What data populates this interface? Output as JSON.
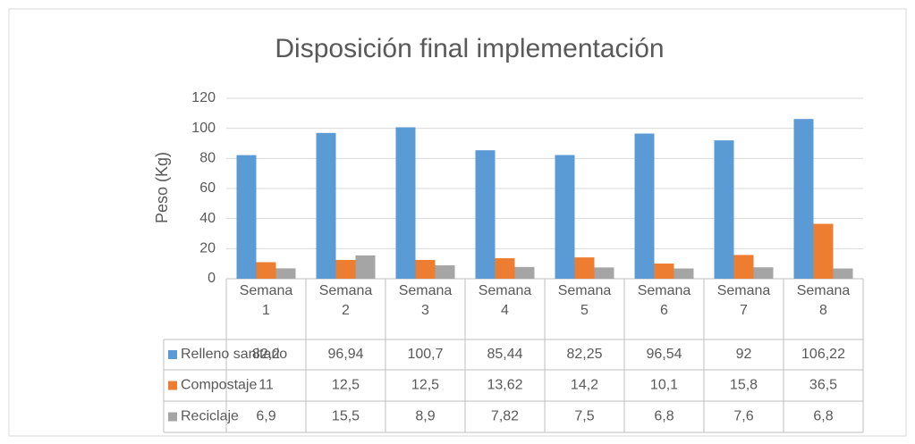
{
  "chart_data": {
    "type": "bar",
    "title": "Disposición final implementación",
    "y_label": "Peso (Kg)",
    "categories": [
      "Semana 1",
      "Semana 2",
      "Semana 3",
      "Semana 4",
      "Semana 5",
      "Semana 6",
      "Semana 7",
      "Semana 8"
    ],
    "series": [
      {
        "name": "Relleno sanitario",
        "color": "#5b9bd5",
        "values": [
          82.2,
          96.94,
          100.7,
          85.44,
          82.25,
          96.54,
          92,
          106.22
        ],
        "value_labels": [
          "82,2",
          "96,94",
          "100,7",
          "85,44",
          "82,25",
          "96,54",
          "92",
          "106,22"
        ]
      },
      {
        "name": "Compostaje",
        "color": "#ed7d31",
        "values": [
          11,
          12.5,
          12.5,
          13.62,
          14.2,
          10.1,
          15.8,
          36.5
        ],
        "value_labels": [
          "11",
          "12,5",
          "12,5",
          "13,62",
          "14,2",
          "10,1",
          "15,8",
          "36,5"
        ]
      },
      {
        "name": "Reciclaje",
        "color": "#a5a5a5",
        "values": [
          6.9,
          15.5,
          8.9,
          7.82,
          7.5,
          6.8,
          7.6,
          6.8
        ],
        "value_labels": [
          "6,9",
          "15,5",
          "8,9",
          "7,82",
          "7,5",
          "6,8",
          "7,6",
          "6,8"
        ]
      }
    ],
    "ylim": [
      0,
      120
    ],
    "yticks": [
      0,
      20,
      40,
      60,
      80,
      100,
      120
    ],
    "grid": true
  }
}
